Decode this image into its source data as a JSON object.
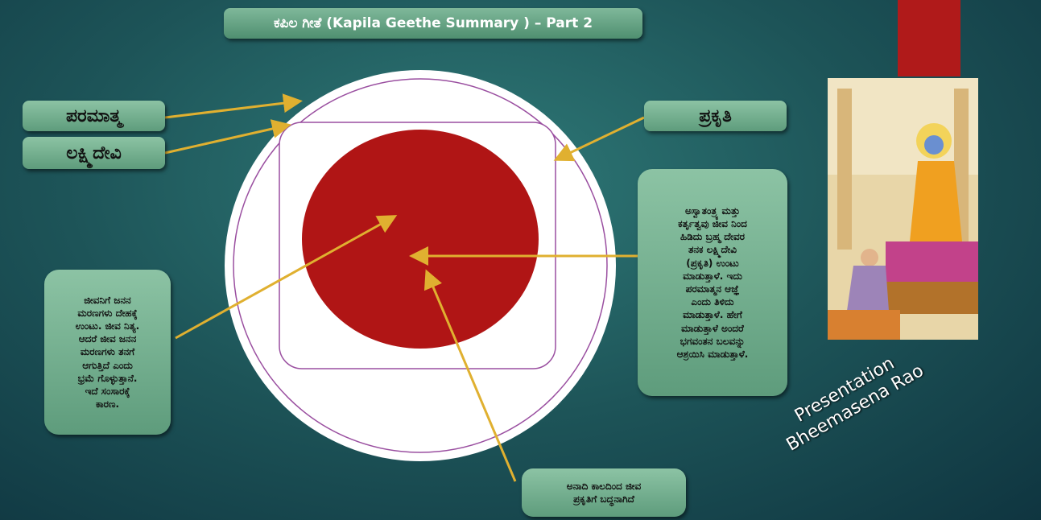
{
  "header": {
    "title": "ಕಪಿಲ ಗೀತೆ (Kapila Geethe Summary ) – Part 2"
  },
  "labels": {
    "paramatma": "ಪರಮಾತ್ಮ",
    "lakshmidevi": "ಲಕ್ಷ್ಮಿದೇವಿ",
    "prakriti": "ಪ್ರಕೃತಿ"
  },
  "notes": {
    "right": [
      "ಅಸ್ವಾತಂತ್ರ್ಯ ಮತ್ತು",
      "ಕರ್ತೃತ್ವವು ಜೀವ ನಿಂದ",
      "ಹಿಡಿದು ಬ್ರಹ್ಮ ದೇವರ",
      "ತನಕ ಲಕ್ಷ್ಮಿದೇವಿ",
      "(ಪ್ರಕೃತಿ) ಉಂಟು",
      "ಮಾಡುತ್ತಾಳೆ. ಇದು",
      "ಪರಮಾತ್ಮನ ಆಜ್ಞೆ",
      "ಎಂದು ತಿಳಿದು",
      "ಮಾಡುತ್ತಾಳೆ. ಹೇಗೆ",
      "ಮಾಡುತ್ತಾಳೆ ಅಂದರೆ",
      "ಭಗವಂತನ ಬಲವನ್ನು",
      "ಆಶ್ರಯಿಸಿ ಮಾಡುತ್ತಾಳೆ."
    ],
    "left": [
      "ಜೀವನಿಗೆ ಜನನ",
      "ಮರಣಗಳು ದೇಹಕ್ಕೆ",
      "ಉಂಟು. ಜೀವ ನಿತ್ಯ.",
      "ಆದರೆ ಜೀವ ಜನನ",
      "ಮರಣಗಳು ತನಗೆ",
      "ಆಗುತ್ತಿದೆ ಎಂದು",
      "ಭ್ರಮೆ ಗೊಳ್ಳುತ್ತಾನೆ.",
      "ಇದೆ ಸಂಸಾರಕ್ಕೆ",
      "ಕಾರಣ."
    ],
    "bottom": [
      "ಅನಾದಿ ಕಾಲದಿಂದ ಜೀವ",
      "ಪ್ರಕೃತಿಗೆ ಬದ್ಧನಾಗಿದೆ"
    ]
  },
  "credit": [
    "Presentation",
    "Bheemasena Rao"
  ]
}
